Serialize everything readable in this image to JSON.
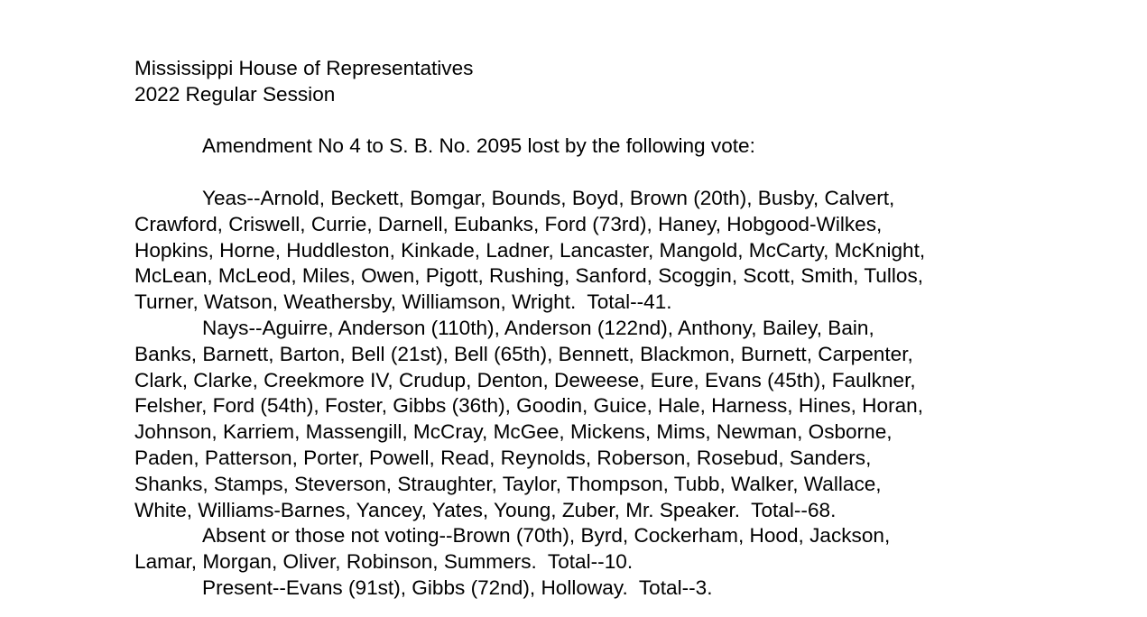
{
  "header": {
    "body": "Mississippi House of Representatives",
    "session": "2022 Regular Session"
  },
  "intro": "Amendment No 4 to S. B. No. 2095 lost by the following vote:",
  "vote_lines": [
    "Yeas--Arnold, Beckett, Bomgar, Bounds, Boyd, Brown (20th), Busby, Calvert,",
    "Crawford, Criswell, Currie, Darnell, Eubanks, Ford (73rd), Haney, Hobgood-Wilkes,",
    "Hopkins, Horne, Huddleston, Kinkade, Ladner, Lancaster, Mangold, McCarty, McKnight,",
    "McLean, McLeod, Miles, Owen, Pigott, Rushing, Sanford, Scoggin, Scott, Smith, Tullos,",
    "Turner, Watson, Weathersby, Williamson, Wright.  Total--41.",
    "Nays--Aguirre, Anderson (110th), Anderson (122nd), Anthony, Bailey, Bain,",
    "Banks, Barnett, Barton, Bell (21st), Bell (65th), Bennett, Blackmon, Burnett, Carpenter,",
    "Clark, Clarke, Creekmore IV, Crudup, Denton, Deweese, Eure, Evans (45th), Faulkner,",
    "Felsher, Ford (54th), Foster, Gibbs (36th), Goodin, Guice, Hale, Harness, Hines, Horan,",
    "Johnson, Karriem, Massengill, McCray, McGee, Mickens, Mims, Newman, Osborne,",
    "Paden, Patterson, Porter, Powell, Read, Reynolds, Roberson, Rosebud, Sanders,",
    "Shanks, Stamps, Steverson, Straughter, Taylor, Thompson, Tubb, Walker, Wallace,",
    "White, Williams-Barnes, Yancey, Yates, Young, Zuber, Mr. Speaker.  Total--68.",
    "Absent or those not voting--Brown (70th), Byrd, Cockerham, Hood, Jackson,",
    "Lamar, Morgan, Oliver, Robinson, Summers.  Total--10.",
    "Present--Evans (91st), Gibbs (72nd), Holloway.  Total--3."
  ]
}
